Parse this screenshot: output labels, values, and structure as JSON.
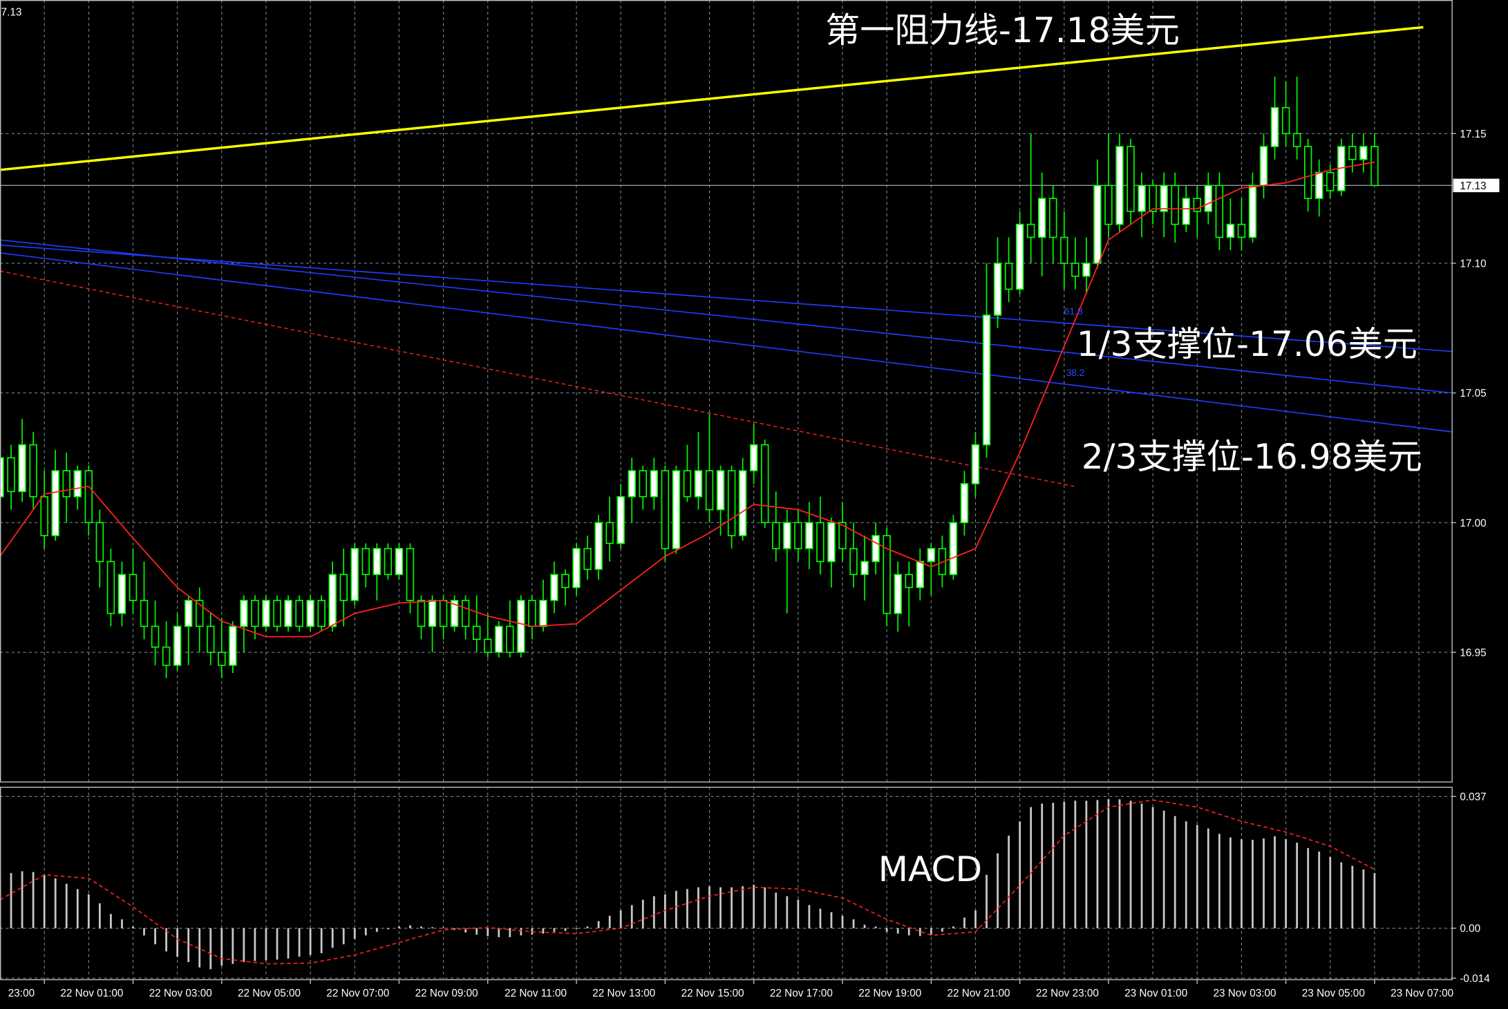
{
  "chart_data": [
    {
      "type": "candlestick",
      "xlim": [
        0,
        131
      ],
      "ylim": [
        16.9,
        17.2015
      ],
      "yticks": [
        16.95,
        {
          "value": 17,
          "label": "17.00"
        },
        17.05,
        {
          "value": 17.1,
          "label": "17.10"
        },
        17.15
      ],
      "xticks": [
        {
          "value": -4,
          "label": "23:00"
        },
        {
          "value": 4,
          "label": "22 Nov 01:00"
        },
        {
          "value": 12,
          "label": "22 Nov 03:00"
        },
        {
          "value": 20,
          "label": "22 Nov 05:00"
        },
        {
          "value": 28,
          "label": "22 Nov 07:00"
        },
        {
          "value": 36,
          "label": "22 Nov 09:00"
        },
        {
          "value": 44,
          "label": "22 Nov 11:00"
        },
        {
          "value": 52,
          "label": "22 Nov 13:00"
        },
        {
          "value": 60,
          "label": "22 Nov 15:00"
        },
        {
          "value": 68,
          "label": "22 Nov 17:00"
        },
        {
          "value": 76,
          "label": "22 Nov 19:00"
        },
        {
          "value": 84,
          "label": "22 Nov 21:00"
        },
        {
          "value": 92,
          "label": "22 Nov 23:00"
        },
        {
          "value": 100,
          "label": "23 Nov 01:00"
        },
        {
          "value": 108,
          "label": "23 Nov 03:00"
        },
        {
          "value": 116,
          "label": "23 Nov 05:00"
        },
        {
          "value": 124,
          "label": "23 Nov 07:00"
        }
      ],
      "grid": true,
      "last_price": 17.13,
      "up_color": "#ffffff",
      "down_color": "#000000",
      "wick_color": "#00ff00",
      "ohlc": [
        [
          17.01,
          17.033,
          16.995,
          17.025
        ],
        [
          17.025,
          17.03,
          17.005,
          17.012
        ],
        [
          17.012,
          17.04,
          17.008,
          17.03
        ],
        [
          17.03,
          17.035,
          17.005,
          17.01
        ],
        [
          17.01,
          17.02,
          16.99,
          16.995
        ],
        [
          16.995,
          17.028,
          16.993,
          17.02
        ],
        [
          17.02,
          17.027,
          17.0,
          17.01
        ],
        [
          17.01,
          17.022,
          17.005,
          17.02
        ],
        [
          17.02,
          17.022,
          16.995,
          17.0
        ],
        [
          17.0,
          17.005,
          16.975,
          16.985
        ],
        [
          16.985,
          16.99,
          16.96,
          16.965
        ],
        [
          16.965,
          16.985,
          16.96,
          16.98
        ],
        [
          16.98,
          16.99,
          16.965,
          16.97
        ],
        [
          16.97,
          16.985,
          16.955,
          16.96
        ],
        [
          16.96,
          16.97,
          16.945,
          16.952
        ],
        [
          16.952,
          16.962,
          16.94,
          16.945
        ],
        [
          16.945,
          16.965,
          16.943,
          16.96
        ],
        [
          16.96,
          16.972,
          16.945,
          16.97
        ],
        [
          16.97,
          16.975,
          16.95,
          16.96
        ],
        [
          16.96,
          16.965,
          16.945,
          16.95
        ],
        [
          16.95,
          16.963,
          16.94,
          16.945
        ],
        [
          16.945,
          16.962,
          16.942,
          16.96
        ],
        [
          16.96,
          16.972,
          16.95,
          16.97
        ],
        [
          16.97,
          16.972,
          16.955,
          16.96
        ],
        [
          16.96,
          16.972,
          16.958,
          16.97
        ],
        [
          16.97,
          16.972,
          16.958,
          16.96
        ],
        [
          16.96,
          16.972,
          16.958,
          16.97
        ],
        [
          16.97,
          16.972,
          16.958,
          16.96
        ],
        [
          16.96,
          16.972,
          16.958,
          16.97
        ],
        [
          16.97,
          16.972,
          16.958,
          16.96
        ],
        [
          16.96,
          16.985,
          16.958,
          16.98
        ],
        [
          16.98,
          16.99,
          16.96,
          16.97
        ],
        [
          16.97,
          16.992,
          16.968,
          16.99
        ],
        [
          16.99,
          16.992,
          16.975,
          16.98
        ],
        [
          16.98,
          16.992,
          16.97,
          16.99
        ],
        [
          16.99,
          16.992,
          16.978,
          16.98
        ],
        [
          16.98,
          16.992,
          16.978,
          16.99
        ],
        [
          16.99,
          16.992,
          16.965,
          16.97
        ],
        [
          16.97,
          16.972,
          16.955,
          16.96
        ],
        [
          16.96,
          16.972,
          16.95,
          16.97
        ],
        [
          16.97,
          16.972,
          16.955,
          16.96
        ],
        [
          16.96,
          16.972,
          16.958,
          16.97
        ],
        [
          16.97,
          16.972,
          16.955,
          16.96
        ],
        [
          16.96,
          16.972,
          16.95,
          16.955
        ],
        [
          16.955,
          16.965,
          16.948,
          16.95
        ],
        [
          16.95,
          16.962,
          16.948,
          16.96
        ],
        [
          16.96,
          16.97,
          16.948,
          16.95
        ],
        [
          16.95,
          16.972,
          16.948,
          16.97
        ],
        [
          16.97,
          16.972,
          16.955,
          16.96
        ],
        [
          16.96,
          16.978,
          16.958,
          16.97
        ],
        [
          16.97,
          16.985,
          16.965,
          16.98
        ],
        [
          16.98,
          16.982,
          16.968,
          16.975
        ],
        [
          16.975,
          16.992,
          16.972,
          16.99
        ],
        [
          16.99,
          16.995,
          16.978,
          16.982
        ],
        [
          16.982,
          17.003,
          16.978,
          17.0
        ],
        [
          17.0,
          17.01,
          16.985,
          16.992
        ],
        [
          16.992,
          17.015,
          16.99,
          17.01
        ],
        [
          17.01,
          17.025,
          17.0,
          17.02
        ],
        [
          17.02,
          17.022,
          17.005,
          17.01
        ],
        [
          17.01,
          17.025,
          17.005,
          17.02
        ],
        [
          17.02,
          17.022,
          16.985,
          16.99
        ],
        [
          16.99,
          17.022,
          16.988,
          17.02
        ],
        [
          17.02,
          17.03,
          17.008,
          17.01
        ],
        [
          17.01,
          17.035,
          17.005,
          17.02
        ],
        [
          17.02,
          17.042,
          17.0,
          17.005
        ],
        [
          17.005,
          17.022,
          16.995,
          17.02
        ],
        [
          17.02,
          17.022,
          16.99,
          16.995
        ],
        [
          16.995,
          17.025,
          16.993,
          17.02
        ],
        [
          17.02,
          17.038,
          17.015,
          17.03
        ],
        [
          17.03,
          17.032,
          16.998,
          17.0
        ],
        [
          17.0,
          17.012,
          16.985,
          16.99
        ],
        [
          16.99,
          17.005,
          16.965,
          17.0
        ],
        [
          17.0,
          17.005,
          16.985,
          16.99
        ],
        [
          16.99,
          17.008,
          16.982,
          17.0
        ],
        [
          17.0,
          17.01,
          16.98,
          16.985
        ],
        [
          16.985,
          17.002,
          16.975,
          17.0
        ],
        [
          17.0,
          17.008,
          16.985,
          16.99
        ],
        [
          16.99,
          17.0,
          16.975,
          16.98
        ],
        [
          16.98,
          16.995,
          16.97,
          16.985
        ],
        [
          16.985,
          17.0,
          16.98,
          16.995
        ],
        [
          16.995,
          16.998,
          16.96,
          16.965
        ],
        [
          16.965,
          16.985,
          16.958,
          16.98
        ],
        [
          16.98,
          16.985,
          16.96,
          16.975
        ],
        [
          16.975,
          16.99,
          16.97,
          16.985
        ],
        [
          16.985,
          16.992,
          16.972,
          16.99
        ],
        [
          16.99,
          16.995,
          16.975,
          16.98
        ],
        [
          16.98,
          17.003,
          16.978,
          17.0
        ],
        [
          17.0,
          17.02,
          16.995,
          17.015
        ],
        [
          17.015,
          17.035,
          17.01,
          17.03
        ],
        [
          17.03,
          17.1,
          17.025,
          17.08
        ],
        [
          17.08,
          17.11,
          17.075,
          17.1
        ],
        [
          17.1,
          17.11,
          17.085,
          17.09
        ],
        [
          17.09,
          17.12,
          17.088,
          17.115
        ],
        [
          17.115,
          17.15,
          17.1,
          17.11
        ],
        [
          17.11,
          17.135,
          17.095,
          17.125
        ],
        [
          17.125,
          17.13,
          17.1,
          17.11
        ],
        [
          17.11,
          17.12,
          17.09,
          17.1
        ],
        [
          17.1,
          17.11,
          17.09,
          17.095
        ],
        [
          17.095,
          17.11,
          17.088,
          17.1
        ],
        [
          17.1,
          17.14,
          17.098,
          17.13
        ],
        [
          17.13,
          17.15,
          17.11,
          17.115
        ],
        [
          17.115,
          17.15,
          17.112,
          17.145
        ],
        [
          17.145,
          17.148,
          17.115,
          17.12
        ],
        [
          17.12,
          17.135,
          17.11,
          17.13
        ],
        [
          17.13,
          17.132,
          17.115,
          17.12
        ],
        [
          17.12,
          17.135,
          17.11,
          17.13
        ],
        [
          17.13,
          17.135,
          17.108,
          17.115
        ],
        [
          17.115,
          17.13,
          17.112,
          17.125
        ],
        [
          17.125,
          17.13,
          17.11,
          17.12
        ],
        [
          17.12,
          17.135,
          17.115,
          17.13
        ],
        [
          17.13,
          17.135,
          17.105,
          17.11
        ],
        [
          17.11,
          17.125,
          17.105,
          17.115
        ],
        [
          17.115,
          17.125,
          17.105,
          17.11
        ],
        [
          17.11,
          17.135,
          17.108,
          17.13
        ],
        [
          17.13,
          17.15,
          17.125,
          17.145
        ],
        [
          17.145,
          17.172,
          17.14,
          17.16
        ],
        [
          17.16,
          17.17,
          17.145,
          17.15
        ],
        [
          17.15,
          17.172,
          17.14,
          17.145
        ],
        [
          17.145,
          17.148,
          17.12,
          17.125
        ],
        [
          17.125,
          17.14,
          17.118,
          17.135
        ],
        [
          17.135,
          17.138,
          17.125,
          17.128
        ],
        [
          17.128,
          17.148,
          17.126,
          17.145
        ],
        [
          17.145,
          17.15,
          17.135,
          17.14
        ],
        [
          17.14,
          17.15,
          17.135,
          17.145
        ],
        [
          17.145,
          17.15,
          17.13,
          17.13
        ]
      ],
      "ma": {
        "color": "#ff2020",
        "x": [
          0,
          4,
          8,
          12,
          16,
          20,
          24,
          28,
          32,
          36,
          40,
          44,
          48,
          52,
          56,
          60,
          64,
          68,
          72,
          76,
          80,
          84,
          88,
          92,
          96,
          100,
          104,
          108,
          112,
          116,
          120,
          124
        ],
        "values": [
          16.987,
          17.011,
          17.014,
          16.994,
          16.975,
          16.962,
          16.956,
          16.956,
          16.965,
          16.969,
          16.97,
          16.964,
          16.96,
          16.961,
          16.974,
          16.987,
          16.996,
          17.007,
          17.005,
          16.999,
          16.99,
          16.983,
          16.99,
          17.027,
          17.068,
          17.109,
          17.121,
          17.121,
          17.129,
          17.131,
          17.136,
          17.139
        ]
      },
      "trendlines": [
        {
          "color": "#ffff00",
          "x": [
            0,
            128.4
          ],
          "values": [
            17.136,
            17.191
          ]
        },
        {
          "color": "#1e3cff",
          "x": [
            0,
            131
          ],
          "values": [
            17.109,
            17.05
          ]
        },
        {
          "color": "#1e3cff",
          "x": [
            0,
            131
          ],
          "values": [
            17.107,
            17.066
          ]
        },
        {
          "color": "#1e3cff",
          "x": [
            0,
            131
          ],
          "values": [
            17.104,
            17.035
          ]
        },
        {
          "color": "#ff2020",
          "x": [
            0,
            96.9
          ],
          "values": [
            17.097,
            17.014
          ],
          "dashed": true
        }
      ],
      "annotations": [
        "第一阻力线-17.18美元",
        "1/3支撑位-17.06美元",
        "2/3支撑位-16.98美元",
        "61.8",
        "38.2"
      ]
    },
    {
      "type": "macd",
      "label": "MACD",
      "ylim": [
        -0.0143,
        0.0397
      ],
      "yticks": [
        -0.014,
        {
          "value": 0,
          "label": "0.00"
        },
        0.037
      ],
      "grid": true,
      "bar_color": "#c8c8c8",
      "histogram": [
        0.014,
        0.0155,
        0.016,
        0.0158,
        0.015,
        0.014,
        0.0125,
        0.011,
        0.0095,
        0.007,
        0.004,
        0.0025,
        0.0005,
        -0.002,
        -0.0045,
        -0.0065,
        -0.008,
        -0.0095,
        -0.011,
        -0.0115,
        -0.0105,
        -0.01,
        -0.0095,
        -0.0092,
        -0.009,
        -0.0088,
        -0.0085,
        -0.008,
        -0.0075,
        -0.007,
        -0.0055,
        -0.0045,
        -0.003,
        -0.002,
        -0.001,
        -0.0003,
        0.0005,
        0.0008,
        0.0005,
        0.0003,
        0.0002,
        -0.0005,
        -0.0012,
        -0.0018,
        -0.0022,
        -0.0025,
        -0.0025,
        -0.002,
        -0.0018,
        -0.0015,
        -0.001,
        -0.0008,
        -0.0003,
        0.0005,
        0.002,
        0.0035,
        0.005,
        0.0065,
        0.008,
        0.009,
        0.0095,
        0.0105,
        0.011,
        0.0115,
        0.0118,
        0.0115,
        0.0115,
        0.0118,
        0.0122,
        0.0115,
        0.01,
        0.009,
        0.008,
        0.0065,
        0.0055,
        0.0045,
        0.0035,
        0.0025,
        0.001,
        0.0005,
        -0.001,
        -0.0015,
        -0.002,
        -0.0022,
        -0.0018,
        -0.001,
        0.0005,
        0.003,
        0.005,
        0.015,
        0.021,
        0.026,
        0.03,
        0.034,
        0.035,
        0.0352,
        0.0355,
        0.0358,
        0.0358,
        0.036,
        0.0362,
        0.0362,
        0.0358,
        0.035,
        0.034,
        0.033,
        0.0315,
        0.03,
        0.029,
        0.028,
        0.0265,
        0.0255,
        0.025,
        0.0248,
        0.0252,
        0.0258,
        0.025,
        0.024,
        0.0225,
        0.0215,
        0.02,
        0.0185,
        0.0175,
        0.0165,
        0.0155
      ],
      "signal": {
        "color": "#ff2020",
        "x": [
          0,
          4,
          8,
          12,
          16,
          20,
          24,
          28,
          32,
          36,
          40,
          44,
          48,
          52,
          56,
          60,
          64,
          68,
          72,
          76,
          80,
          84,
          88,
          92,
          96,
          100,
          104,
          108,
          112,
          116,
          120,
          124
        ],
        "values": [
          0.008,
          0.015,
          0.014,
          0.006,
          -0.003,
          -0.0085,
          -0.01,
          -0.0098,
          -0.0075,
          -0.004,
          -0.0005,
          0.0002,
          -0.001,
          -0.0015,
          0.0,
          0.005,
          0.009,
          0.0115,
          0.011,
          0.0085,
          0.0025,
          -0.002,
          -0.001,
          0.012,
          0.026,
          0.034,
          0.036,
          0.034,
          0.03,
          0.027,
          0.023,
          0.0165
        ]
      }
    }
  ]
}
